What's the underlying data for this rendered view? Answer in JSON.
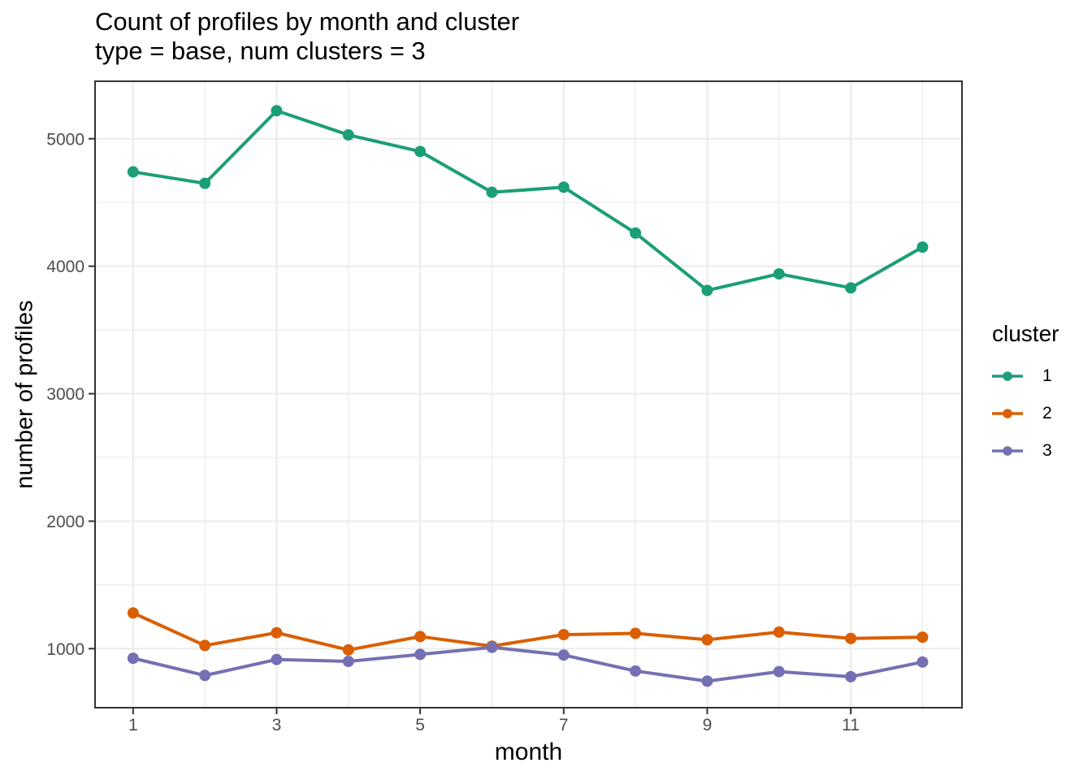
{
  "page": {
    "background": "#ffffff"
  },
  "chart_data": {
    "type": "line",
    "title": "Count of profiles by month and cluster",
    "subtitle": "type = base, num clusters = 3",
    "xlabel": "month",
    "ylabel": "number of profiles",
    "x": [
      1,
      2,
      3,
      4,
      5,
      6,
      7,
      8,
      9,
      10,
      11,
      12
    ],
    "series": [
      {
        "name": "1",
        "color": "#1B9E77",
        "values": [
          4740,
          4650,
          5220,
          5030,
          4900,
          4580,
          4620,
          4260,
          3810,
          3940,
          3830,
          4150
        ]
      },
      {
        "name": "2",
        "color": "#D95F02",
        "values": [
          1280,
          1025,
          1125,
          990,
          1095,
          1020,
          1110,
          1120,
          1070,
          1130,
          1080,
          1090
        ]
      },
      {
        "name": "3",
        "color": "#7570B3",
        "values": [
          925,
          790,
          915,
          900,
          955,
          1010,
          950,
          825,
          745,
          820,
          780,
          895
        ]
      }
    ],
    "legend": {
      "title": "cluster",
      "position": "right",
      "entries": [
        "1",
        "2",
        "3"
      ]
    },
    "x_ticks": [
      1,
      3,
      5,
      7,
      9,
      11
    ],
    "x_minor": [
      2,
      4,
      6,
      8,
      10,
      12
    ],
    "y_ticks": [
      1000,
      2000,
      3000,
      4000,
      5000
    ],
    "y_minor": [
      1500,
      2500,
      3500,
      4500
    ],
    "xlim": [
      0.47,
      12.55
    ],
    "ylim": [
      537,
      5451
    ],
    "grid": true,
    "style": {
      "grid_color": "#EBEBEB",
      "panel_border_color": "#333333",
      "tick_color": "#333333",
      "tick_label_color": "#4D4D4D",
      "background": "#FFFFFF"
    }
  }
}
